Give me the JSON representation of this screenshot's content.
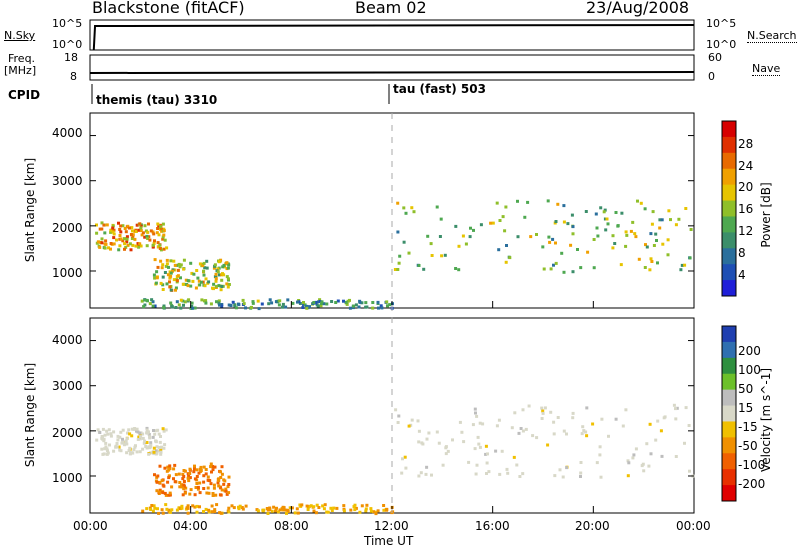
{
  "header": {
    "station": "Blackstone (fitACF)",
    "beam": "Beam 02",
    "date": "23/Aug/2008"
  },
  "top_strips": {
    "nsky_label": "N.Sky",
    "nsky_ticks": [
      "10^5",
      "10^0"
    ],
    "nsearch_label": "N.Search",
    "nsearch_ticks": [
      "10^5",
      "10^0"
    ],
    "freq_label": "Freq.",
    "freq_unit": "[MHz]",
    "freq_ticks": [
      "18",
      "8"
    ],
    "nave_label": "Nave",
    "nave_ticks": [
      "60",
      "0"
    ],
    "cpid_label": "CPID",
    "cpid_segments": [
      "themis (tau) 3310",
      "tau (fast) 503"
    ]
  },
  "x_axis": {
    "label": "Time UT",
    "ticks": [
      "00:00",
      "04:00",
      "08:00",
      "12:00",
      "16:00",
      "20:00",
      "00:00"
    ]
  },
  "colors": {
    "power_scale": [
      "#1f1fd8",
      "#1e4fb4",
      "#2a6f9c",
      "#3b8e6a",
      "#4ea850",
      "#8fbf2a",
      "#e6c400",
      "#f0a000",
      "#e86a00",
      "#e03000",
      "#d60000"
    ],
    "velocity_scale": [
      "#1f3fb0",
      "#2f6fb0",
      "#2e8f3f",
      "#6cc02a",
      "#bdbdbd",
      "#d8d8c8",
      "#f0c000",
      "#f09000",
      "#f06000",
      "#e83000",
      "#e00000"
    ]
  },
  "chart_data": [
    {
      "type": "heatmap",
      "title": "",
      "xlabel": "",
      "ylabel": "Slant Range [km]",
      "xlim": [
        0,
        24
      ],
      "ylim": [
        180,
        4500
      ],
      "yticks": [
        1000,
        2000,
        3000,
        4000
      ],
      "colorbar": {
        "label": "Power [dB]",
        "ticks": [
          "28",
          "24",
          "20",
          "16",
          "12",
          "8",
          "4"
        ],
        "range": [
          0,
          30
        ]
      },
      "features": [
        {
          "name": "morning arc",
          "x_hours": [
            0.2,
            3.0
          ],
          "range_km": [
            1500,
            2100
          ],
          "power_db": 20
        },
        {
          "name": "near-range band",
          "x_hours": [
            2.0,
            12.0
          ],
          "range_km": [
            200,
            400
          ],
          "power_db": 10
        },
        {
          "name": "evening arc",
          "x_hours": [
            12.0,
            24.0
          ],
          "range_km": [
            1000,
            2600
          ],
          "power_db": 14
        },
        {
          "name": "mid-range patch",
          "x_hours": [
            2.5,
            5.5
          ],
          "range_km": [
            600,
            1300
          ],
          "power_db": 16
        }
      ]
    },
    {
      "type": "heatmap",
      "title": "",
      "xlabel": "Time UT",
      "ylabel": "Slant Range [km]",
      "xlim": [
        0,
        24
      ],
      "ylim": [
        180,
        4500
      ],
      "yticks": [
        1000,
        2000,
        3000,
        4000
      ],
      "colorbar": {
        "label": "Velocity [m s^-1]",
        "ticks": [
          "200",
          "100",
          "50",
          "15",
          "-15",
          "-50",
          "-100",
          "-200"
        ],
        "range": [
          -250,
          250
        ]
      },
      "features": [
        {
          "name": "morning arc",
          "x_hours": [
            0.2,
            3.0
          ],
          "range_km": [
            1500,
            2100
          ],
          "velocity": 0
        },
        {
          "name": "near-range band",
          "x_hours": [
            2.0,
            12.0
          ],
          "range_km": [
            200,
            400
          ],
          "velocity": -80
        },
        {
          "name": "evening arc",
          "x_hours": [
            12.0,
            24.0
          ],
          "range_km": [
            1000,
            2600
          ],
          "velocity": 0
        },
        {
          "name": "mid-range patch",
          "x_hours": [
            2.5,
            5.5
          ],
          "range_km": [
            600,
            1300
          ],
          "velocity": -120
        }
      ]
    }
  ]
}
